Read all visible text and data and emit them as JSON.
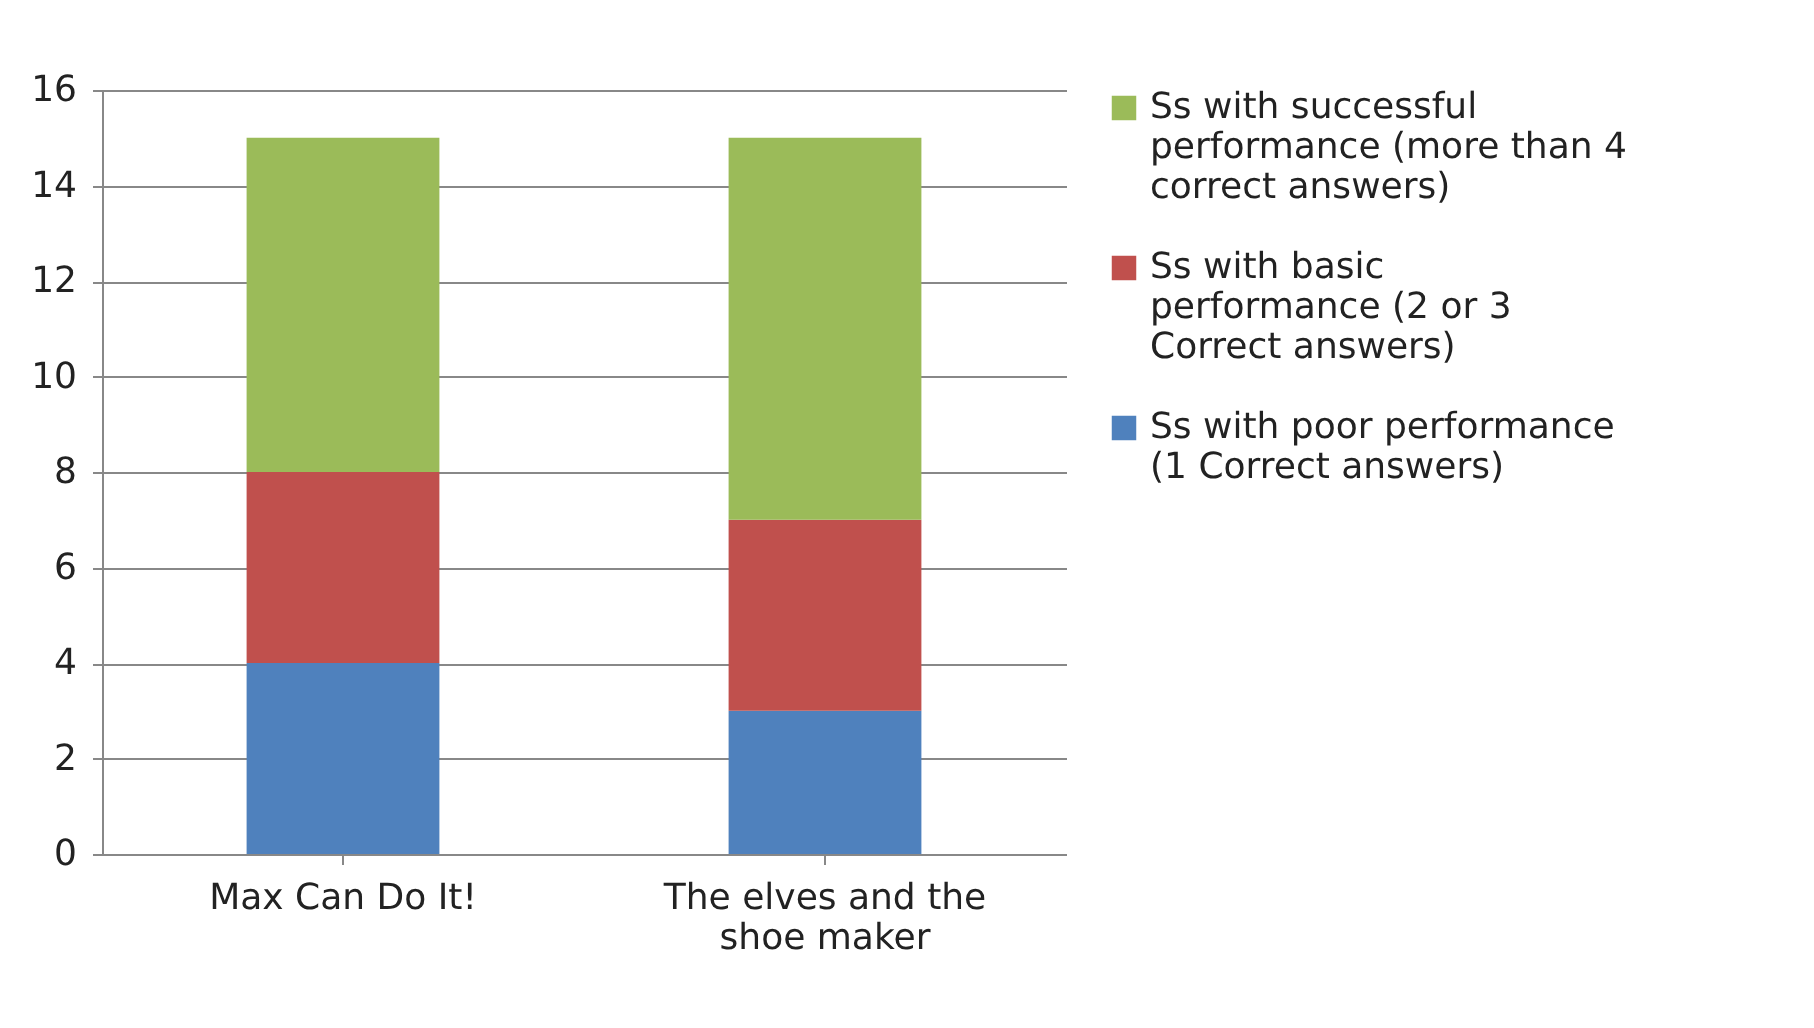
{
  "chart_data": {
    "type": "bar",
    "stacked": true,
    "categories": [
      "Max Can Do It!",
      "The elves and the shoe maker"
    ],
    "series": [
      {
        "name": "Ss with poor performance (1 Correct answers)",
        "color": "#4f81bd",
        "values": [
          4,
          3
        ]
      },
      {
        "name": "Ss with basic performance (2 or 3 Correct answers)",
        "color": "#c0504d",
        "values": [
          4,
          4
        ]
      },
      {
        "name": "Ss with successful performance (more than 4 correct answers)",
        "color": "#9bbb59",
        "values": [
          7,
          8
        ]
      }
    ],
    "ylim": [
      0,
      16
    ],
    "yticks": [
      0,
      2,
      4,
      6,
      8,
      10,
      12,
      14,
      16
    ],
    "grid": "y",
    "legend": "right"
  }
}
